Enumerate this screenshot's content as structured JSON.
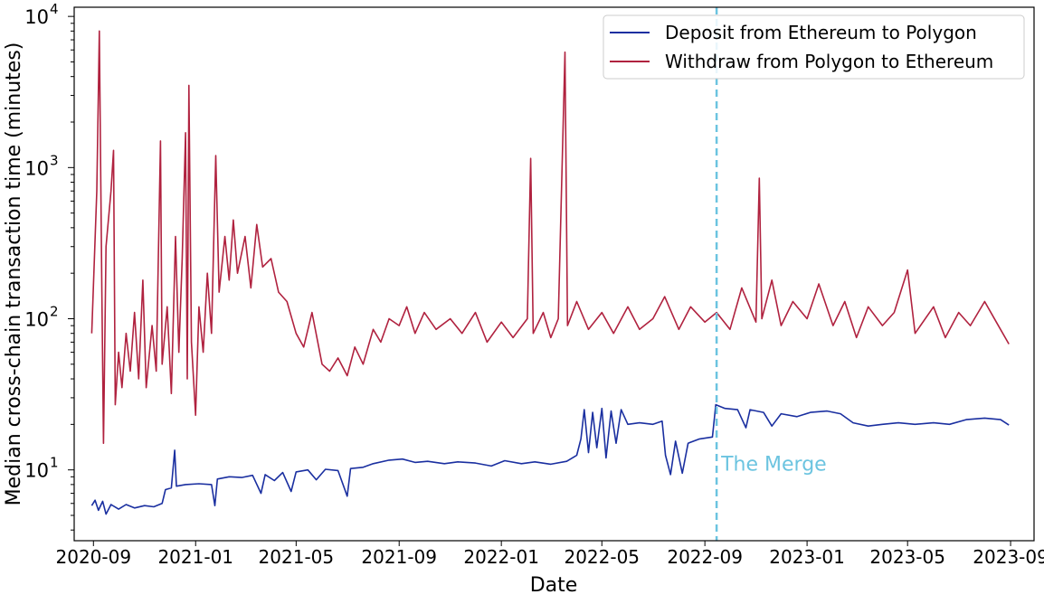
{
  "chart_data": {
    "type": "line",
    "xlabel": "Date",
    "ylabel": "Median cross-chain transaction time (minutes)",
    "yscale": "log",
    "ylim": [
      3.4,
      11500
    ],
    "xlim": [
      "2020-08-09",
      "2023-09-29"
    ],
    "grid": false,
    "legend_position": "top-right",
    "x_ticks": [
      "2020-09",
      "2021-01",
      "2021-05",
      "2021-09",
      "2022-01",
      "2022-05",
      "2022-09",
      "2023-01",
      "2023-05",
      "2023-09"
    ],
    "y_ticks": [
      {
        "base": "10",
        "exp": "1",
        "value": 10
      },
      {
        "base": "10",
        "exp": "2",
        "value": 100
      },
      {
        "base": "10",
        "exp": "3",
        "value": 1000
      },
      {
        "base": "10",
        "exp": "4",
        "value": 10000
      }
    ],
    "annotations": [
      {
        "text": "The Merge",
        "x": "2022-09-15",
        "color": "#6cc4e0",
        "style": "dashed-vertical-line"
      }
    ],
    "series": [
      {
        "name": "Deposit from Ethereum to Polygon",
        "color": "#1a2fa0",
        "points": [
          [
            "2020-08-30",
            5.8
          ],
          [
            "2020-09-03",
            6.3
          ],
          [
            "2020-09-07",
            5.4
          ],
          [
            "2020-09-12",
            6.2
          ],
          [
            "2020-09-16",
            5.1
          ],
          [
            "2020-09-22",
            5.9
          ],
          [
            "2020-10-01",
            5.5
          ],
          [
            "2020-10-10",
            5.9
          ],
          [
            "2020-10-20",
            5.6
          ],
          [
            "2020-11-01",
            5.8
          ],
          [
            "2020-11-12",
            5.7
          ],
          [
            "2020-11-22",
            6.0
          ],
          [
            "2020-11-26",
            7.4
          ],
          [
            "2020-12-03",
            7.6
          ],
          [
            "2020-12-07",
            13.5
          ],
          [
            "2020-12-09",
            7.8
          ],
          [
            "2020-12-20",
            8.0
          ],
          [
            "2021-01-05",
            8.1
          ],
          [
            "2021-01-20",
            8.0
          ],
          [
            "2021-01-24",
            5.8
          ],
          [
            "2021-01-27",
            8.7
          ],
          [
            "2021-02-10",
            9.0
          ],
          [
            "2021-02-25",
            8.9
          ],
          [
            "2021-03-10",
            9.2
          ],
          [
            "2021-03-20",
            7.0
          ],
          [
            "2021-03-25",
            9.3
          ],
          [
            "2021-04-05",
            8.5
          ],
          [
            "2021-04-15",
            9.6
          ],
          [
            "2021-04-25",
            7.2
          ],
          [
            "2021-05-01",
            9.7
          ],
          [
            "2021-05-15",
            10.0
          ],
          [
            "2021-05-25",
            8.6
          ],
          [
            "2021-06-05",
            10.1
          ],
          [
            "2021-06-20",
            9.9
          ],
          [
            "2021-07-01",
            6.7
          ],
          [
            "2021-07-05",
            10.2
          ],
          [
            "2021-07-20",
            10.4
          ],
          [
            "2021-08-01",
            11.0
          ],
          [
            "2021-08-20",
            11.6
          ],
          [
            "2021-09-05",
            11.8
          ],
          [
            "2021-09-20",
            11.2
          ],
          [
            "2021-10-05",
            11.4
          ],
          [
            "2021-10-25",
            11.0
          ],
          [
            "2021-11-10",
            11.3
          ],
          [
            "2021-12-01",
            11.1
          ],
          [
            "2021-12-20",
            10.6
          ],
          [
            "2022-01-05",
            11.5
          ],
          [
            "2022-01-25",
            11.0
          ],
          [
            "2022-02-10",
            11.3
          ],
          [
            "2022-03-01",
            10.9
          ],
          [
            "2022-03-20",
            11.4
          ],
          [
            "2022-04-01",
            12.5
          ],
          [
            "2022-04-06",
            16.0
          ],
          [
            "2022-04-10",
            25.0
          ],
          [
            "2022-04-15",
            13.0
          ],
          [
            "2022-04-20",
            24.0
          ],
          [
            "2022-04-25",
            14.0
          ],
          [
            "2022-05-01",
            25.5
          ],
          [
            "2022-05-06",
            12.0
          ],
          [
            "2022-05-12",
            24.5
          ],
          [
            "2022-05-18",
            15.0
          ],
          [
            "2022-05-24",
            25.0
          ],
          [
            "2022-06-01",
            20.0
          ],
          [
            "2022-06-15",
            20.5
          ],
          [
            "2022-07-01",
            20.0
          ],
          [
            "2022-07-12",
            21.0
          ],
          [
            "2022-07-16",
            12.5
          ],
          [
            "2022-07-22",
            9.3
          ],
          [
            "2022-07-28",
            15.5
          ],
          [
            "2022-08-05",
            9.5
          ],
          [
            "2022-08-12",
            15.0
          ],
          [
            "2022-08-25",
            16.0
          ],
          [
            "2022-09-10",
            16.5
          ],
          [
            "2022-09-14",
            27.0
          ],
          [
            "2022-09-25",
            25.5
          ],
          [
            "2022-10-10",
            25.0
          ],
          [
            "2022-10-20",
            19.0
          ],
          [
            "2022-10-25",
            25.0
          ],
          [
            "2022-11-10",
            24.0
          ],
          [
            "2022-11-20",
            19.5
          ],
          [
            "2022-12-01",
            23.5
          ],
          [
            "2022-12-20",
            22.5
          ],
          [
            "2023-01-05",
            24.0
          ],
          [
            "2023-01-25",
            24.5
          ],
          [
            "2023-02-10",
            23.5
          ],
          [
            "2023-02-25",
            20.5
          ],
          [
            "2023-03-15",
            19.5
          ],
          [
            "2023-04-01",
            20.0
          ],
          [
            "2023-04-20",
            20.5
          ],
          [
            "2023-05-10",
            20.0
          ],
          [
            "2023-06-01",
            20.5
          ],
          [
            "2023-06-20",
            20.0
          ],
          [
            "2023-07-10",
            21.5
          ],
          [
            "2023-08-01",
            22.0
          ],
          [
            "2023-08-20",
            21.5
          ],
          [
            "2023-08-30",
            19.8
          ]
        ]
      },
      {
        "name": "Withdraw from Polygon to Ethereum",
        "color": "#b0223f",
        "points": [
          [
            "2020-08-30",
            80
          ],
          [
            "2020-09-05",
            700
          ],
          [
            "2020-09-08",
            8000
          ],
          [
            "2020-09-11",
            150
          ],
          [
            "2020-09-13",
            15
          ],
          [
            "2020-09-16",
            300
          ],
          [
            "2020-09-22",
            700
          ],
          [
            "2020-09-25",
            1300
          ],
          [
            "2020-09-27",
            27
          ],
          [
            "2020-10-01",
            60
          ],
          [
            "2020-10-05",
            35
          ],
          [
            "2020-10-10",
            80
          ],
          [
            "2020-10-15",
            45
          ],
          [
            "2020-10-20",
            110
          ],
          [
            "2020-10-25",
            40
          ],
          [
            "2020-10-30",
            180
          ],
          [
            "2020-11-03",
            35
          ],
          [
            "2020-11-10",
            90
          ],
          [
            "2020-11-15",
            45
          ],
          [
            "2020-11-20",
            1500
          ],
          [
            "2020-11-22",
            50
          ],
          [
            "2020-11-28",
            120
          ],
          [
            "2020-12-03",
            32
          ],
          [
            "2020-12-08",
            350
          ],
          [
            "2020-12-12",
            60
          ],
          [
            "2020-12-16",
            250
          ],
          [
            "2020-12-20",
            1700
          ],
          [
            "2020-12-22",
            40
          ],
          [
            "2020-12-24",
            3500
          ],
          [
            "2020-12-27",
            70
          ],
          [
            "2021-01-01",
            23
          ],
          [
            "2021-01-05",
            120
          ],
          [
            "2021-01-10",
            60
          ],
          [
            "2021-01-15",
            200
          ],
          [
            "2021-01-20",
            80
          ],
          [
            "2021-01-25",
            1200
          ],
          [
            "2021-01-29",
            150
          ],
          [
            "2021-02-05",
            350
          ],
          [
            "2021-02-10",
            180
          ],
          [
            "2021-02-15",
            450
          ],
          [
            "2021-02-20",
            200
          ],
          [
            "2021-03-01",
            350
          ],
          [
            "2021-03-08",
            160
          ],
          [
            "2021-03-15",
            420
          ],
          [
            "2021-03-22",
            220
          ],
          [
            "2021-04-01",
            250
          ],
          [
            "2021-04-10",
            150
          ],
          [
            "2021-04-20",
            130
          ],
          [
            "2021-05-01",
            80
          ],
          [
            "2021-05-10",
            65
          ],
          [
            "2021-05-20",
            110
          ],
          [
            "2021-06-01",
            50
          ],
          [
            "2021-06-10",
            45
          ],
          [
            "2021-06-20",
            55
          ],
          [
            "2021-07-01",
            42
          ],
          [
            "2021-07-10",
            65
          ],
          [
            "2021-07-20",
            50
          ],
          [
            "2021-08-01",
            85
          ],
          [
            "2021-08-10",
            70
          ],
          [
            "2021-08-20",
            100
          ],
          [
            "2021-09-01",
            90
          ],
          [
            "2021-09-10",
            120
          ],
          [
            "2021-09-20",
            80
          ],
          [
            "2021-10-01",
            110
          ],
          [
            "2021-10-15",
            85
          ],
          [
            "2021-11-01",
            100
          ],
          [
            "2021-11-15",
            80
          ],
          [
            "2021-12-01",
            110
          ],
          [
            "2021-12-15",
            70
          ],
          [
            "2022-01-01",
            95
          ],
          [
            "2022-01-15",
            75
          ],
          [
            "2022-02-01",
            100
          ],
          [
            "2022-02-05",
            1150
          ],
          [
            "2022-02-08",
            80
          ],
          [
            "2022-02-20",
            110
          ],
          [
            "2022-03-01",
            75
          ],
          [
            "2022-03-10",
            100
          ],
          [
            "2022-03-18",
            5800
          ],
          [
            "2022-03-21",
            90
          ],
          [
            "2022-04-01",
            130
          ],
          [
            "2022-04-15",
            85
          ],
          [
            "2022-05-01",
            110
          ],
          [
            "2022-05-15",
            80
          ],
          [
            "2022-06-01",
            120
          ],
          [
            "2022-06-15",
            85
          ],
          [
            "2022-07-01",
            100
          ],
          [
            "2022-07-15",
            140
          ],
          [
            "2022-08-01",
            85
          ],
          [
            "2022-08-15",
            120
          ],
          [
            "2022-09-01",
            95
          ],
          [
            "2022-09-15",
            110
          ],
          [
            "2022-10-01",
            85
          ],
          [
            "2022-10-15",
            160
          ],
          [
            "2022-11-01",
            95
          ],
          [
            "2022-11-05",
            850
          ],
          [
            "2022-11-08",
            100
          ],
          [
            "2022-11-20",
            180
          ],
          [
            "2022-12-01",
            90
          ],
          [
            "2022-12-15",
            130
          ],
          [
            "2023-01-01",
            100
          ],
          [
            "2023-01-15",
            170
          ],
          [
            "2023-02-01",
            90
          ],
          [
            "2023-02-15",
            130
          ],
          [
            "2023-03-01",
            75
          ],
          [
            "2023-03-15",
            120
          ],
          [
            "2023-04-01",
            90
          ],
          [
            "2023-04-15",
            110
          ],
          [
            "2023-05-01",
            210
          ],
          [
            "2023-05-10",
            80
          ],
          [
            "2023-06-01",
            120
          ],
          [
            "2023-06-15",
            75
          ],
          [
            "2023-07-01",
            110
          ],
          [
            "2023-07-15",
            90
          ],
          [
            "2023-08-01",
            130
          ],
          [
            "2023-08-15",
            95
          ],
          [
            "2023-08-30",
            68
          ]
        ]
      }
    ]
  }
}
